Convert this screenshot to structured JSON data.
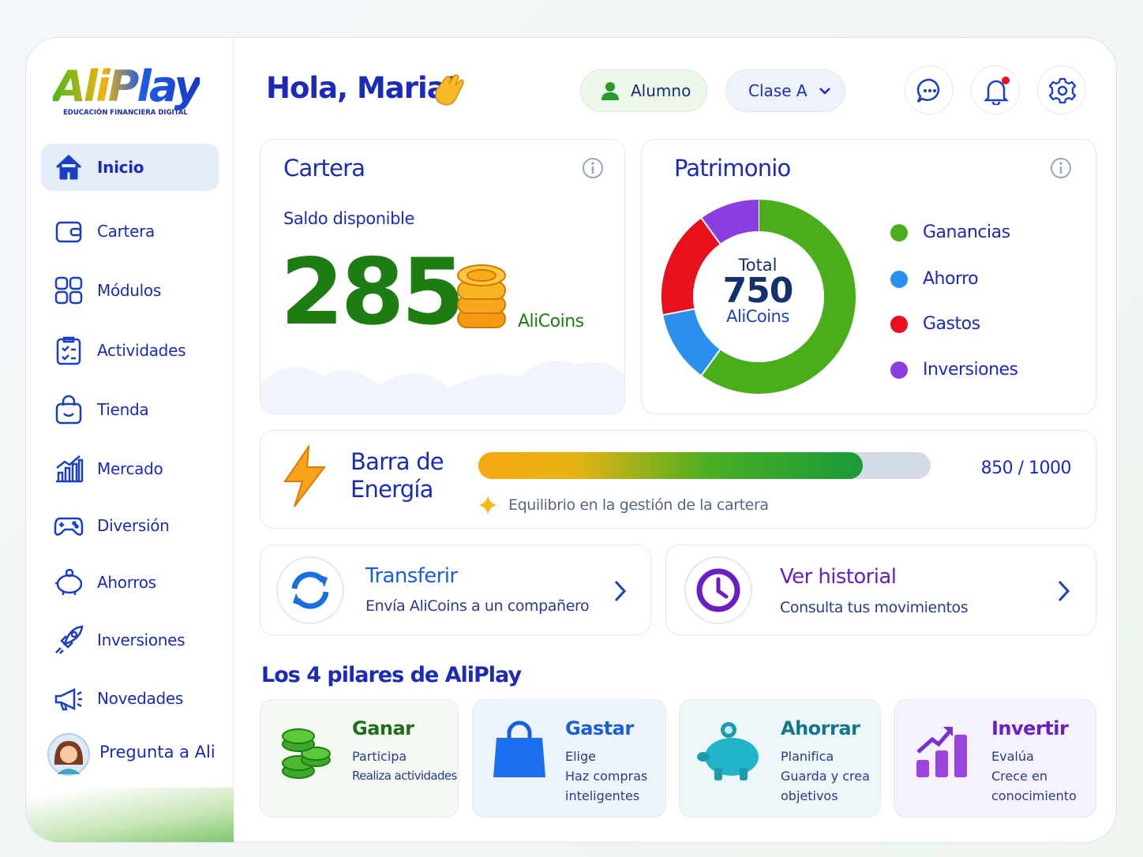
{
  "sidebar": {
    "logo": {
      "title": "AliPlay",
      "subtitle": "EDUCACIÓN FINANCIERA DIGITAL"
    },
    "nav": [
      {
        "label": "Inicio",
        "active": true
      },
      {
        "label": "Cartera",
        "active": false
      },
      {
        "label": "Módulos",
        "active": false
      },
      {
        "label": "Actividades",
        "active": false
      },
      {
        "label": "Tienda",
        "active": false
      },
      {
        "label": "Mercado",
        "active": false
      },
      {
        "label": "Diversión",
        "active": false
      },
      {
        "label": "Ahorros",
        "active": false
      },
      {
        "label": "Inversiones",
        "active": false
      },
      {
        "label": "Novedades",
        "active": false
      }
    ],
    "ask": "Pregunta a Ali"
  },
  "header": {
    "greeting": "Hola, Maria!",
    "role": "Alumno",
    "class": "Clase A"
  },
  "wallet": {
    "title": "Cartera",
    "subtitle": "Saldo disponible",
    "balance": 285,
    "unit": "AliCoins"
  },
  "chart_data": {
    "type": "donut",
    "title": "Patrimonio",
    "center_label": "Total",
    "total": 750,
    "unit": "AliCoins",
    "categories": [
      "Ganancias",
      "Ahorro",
      "Gastos",
      "Inversiones"
    ],
    "values": [
      450,
      90,
      135,
      75
    ],
    "colors": [
      "#4aae1c",
      "#2b8ff0",
      "#e8101c",
      "#8b3fe0"
    ]
  },
  "energy": {
    "title": "Barra de Energía",
    "value": 850,
    "max": 1000,
    "label": "850 / 1000",
    "hint": "Equilibrio en la gestión de la cartera"
  },
  "actions": [
    {
      "title": "Transferir",
      "subtitle": "Envía AliCoins a un compañero"
    },
    {
      "title": "Ver historial",
      "subtitle": "Consulta tus movimientos"
    }
  ],
  "pillars": {
    "title": "Los 4 pilares de AliPlay",
    "items": [
      {
        "title": "Ganar",
        "lines": [
          "Participa",
          "Realiza actividades"
        ]
      },
      {
        "title": "Gastar",
        "lines": [
          "Elige",
          "Haz compras inteligentes"
        ]
      },
      {
        "title": "Ahorrar",
        "lines": [
          "Planifica",
          "Guarda y crea objetivos"
        ]
      },
      {
        "title": "Invertir",
        "lines": [
          "Evalúa",
          "Crece en conocimiento"
        ]
      }
    ]
  }
}
